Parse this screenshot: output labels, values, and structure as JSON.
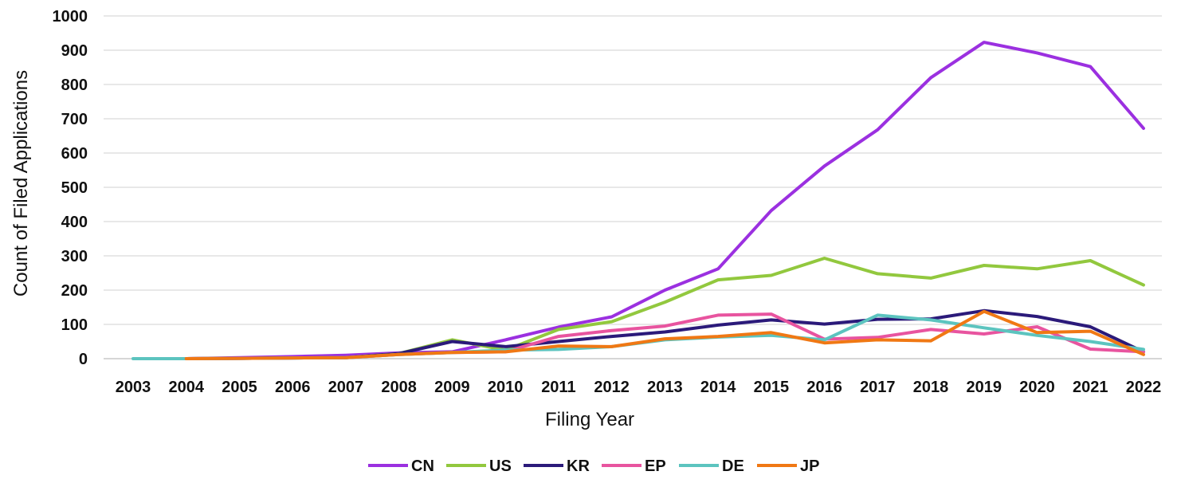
{
  "chart_data": {
    "type": "line",
    "title": "",
    "xlabel": "Filing Year",
    "ylabel": "Count of Filed Applications",
    "ylim": [
      0,
      1000
    ],
    "yticks": [
      0,
      100,
      200,
      300,
      400,
      500,
      600,
      700,
      800,
      900,
      1000
    ],
    "grid": true,
    "legend_position": "bottom",
    "x": [
      "2003",
      "2004",
      "2005",
      "2006",
      "2007",
      "2008",
      "2009",
      "2010",
      "2011",
      "2012",
      "2013",
      "2014",
      "2015",
      "2016",
      "2017",
      "2018",
      "2019",
      "2020",
      "2021",
      "2022"
    ],
    "series": [
      {
        "name": "CN",
        "color": "#9b30e0",
        "values": [
          null,
          0,
          3,
          6,
          10,
          17,
          20,
          55,
          92,
          122,
          200,
          262,
          432,
          562,
          668,
          820,
          923,
          892,
          852,
          672
        ]
      },
      {
        "name": "US",
        "color": "#92c83e",
        "values": [
          null,
          0,
          1,
          2,
          3,
          15,
          55,
          25,
          85,
          108,
          165,
          230,
          243,
          293,
          248,
          235,
          272,
          262,
          286,
          215
        ]
      },
      {
        "name": "KR",
        "color": "#2b1a7a",
        "values": [
          null,
          0,
          1,
          2,
          3,
          15,
          50,
          35,
          50,
          65,
          78,
          98,
          113,
          101,
          115,
          116,
          140,
          123,
          93,
          20
        ]
      },
      {
        "name": "EP",
        "color": "#e8549f",
        "values": [
          null,
          0,
          1,
          2,
          3,
          12,
          18,
          20,
          65,
          82,
          95,
          127,
          130,
          57,
          62,
          85,
          72,
          93,
          28,
          20
        ]
      },
      {
        "name": "DE",
        "color": "#5cc4bf",
        "values": [
          0,
          0,
          1,
          2,
          3,
          12,
          18,
          25,
          27,
          35,
          55,
          63,
          68,
          55,
          127,
          113,
          90,
          68,
          50,
          27
        ]
      },
      {
        "name": "JP",
        "color": "#f07814",
        "values": [
          null,
          0,
          1,
          2,
          3,
          12,
          18,
          20,
          37,
          35,
          58,
          65,
          76,
          46,
          55,
          52,
          138,
          76,
          80,
          12
        ]
      }
    ]
  }
}
